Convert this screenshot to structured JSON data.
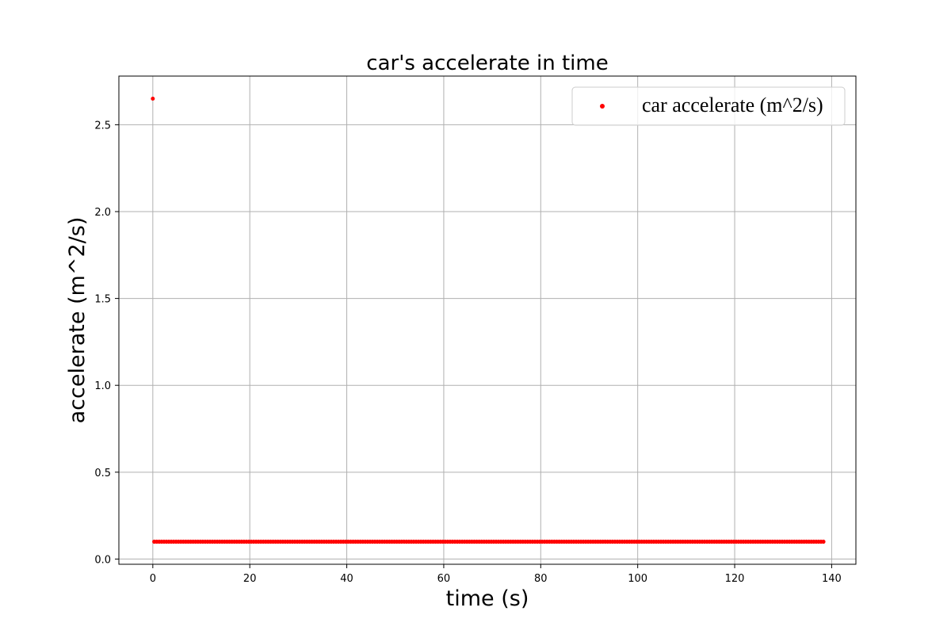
{
  "chart_data": {
    "type": "scatter",
    "title": "car's accelerate in time",
    "xlabel": "time (s)",
    "ylabel": "accelerate (m^2/s)",
    "xlim": [
      -7,
      145
    ],
    "ylim": [
      -0.03,
      2.78
    ],
    "x_ticks": [
      0,
      20,
      40,
      60,
      80,
      100,
      120,
      140
    ],
    "y_ticks": [
      0.0,
      0.5,
      1.0,
      1.5,
      2.0,
      2.5
    ],
    "x_tick_labels": [
      "0",
      "20",
      "40",
      "60",
      "80",
      "100",
      "120",
      "140"
    ],
    "y_tick_labels": [
      "0.0",
      "0.5",
      "1.0",
      "1.5",
      "2.0",
      "2.5"
    ],
    "grid": true,
    "legend_position": "top-right",
    "color": "#ff0000",
    "series": [
      {
        "name": "car accelerate (m^2/s)",
        "first_point": {
          "x": 0,
          "y": 2.65
        },
        "constant_segment": {
          "x_start": 0.3,
          "x_end": 138.3,
          "step": 0.5,
          "y": 0.1
        }
      }
    ]
  }
}
